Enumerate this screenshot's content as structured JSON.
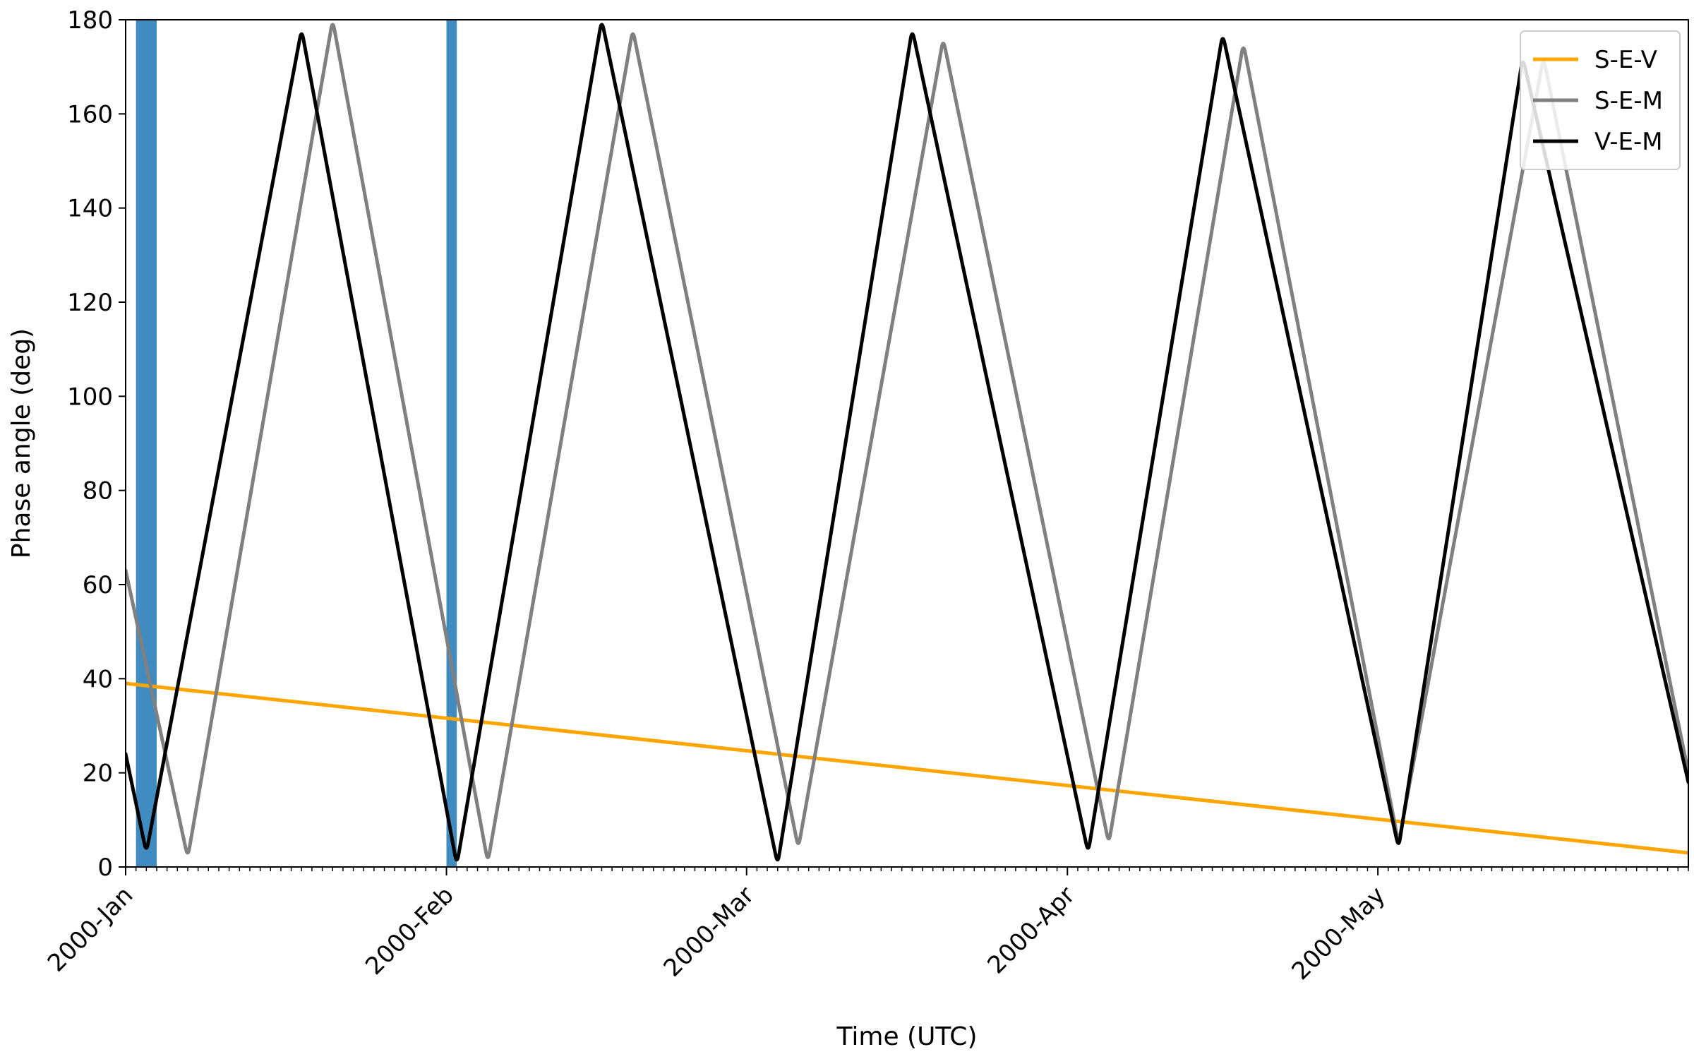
{
  "chart_data": {
    "type": "line",
    "title": "",
    "xlabel": "Time (UTC)",
    "ylabel": "Phase angle (deg)",
    "xlim": [
      "2000-01-01",
      "2000-05-31"
    ],
    "ylim": [
      0,
      180
    ],
    "y_ticks": [
      0,
      20,
      40,
      60,
      80,
      100,
      120,
      140,
      160,
      180
    ],
    "x_ticks": [
      {
        "date": "2000-01-01",
        "label": "2000-Jan"
      },
      {
        "date": "2000-02-01",
        "label": "2000-Feb"
      },
      {
        "date": "2000-03-01",
        "label": "2000-Mar"
      },
      {
        "date": "2000-04-01",
        "label": "2000-Apr"
      },
      {
        "date": "2000-05-01",
        "label": "2000-May"
      }
    ],
    "minor_ticks": "daily",
    "grid": false,
    "legend_position": "top-right",
    "shaded_intervals": [
      {
        "start": "2000-01-02",
        "end": "2000-01-04",
        "color": "#1f77b4"
      },
      {
        "start": "2000-02-01",
        "end": "2000-02-02",
        "color": "#1f77b4"
      }
    ],
    "series": [
      {
        "name": "S-E-V",
        "color": "#ffa500",
        "points": [
          [
            "2000-01-01",
            39.0
          ],
          [
            "2000-05-31",
            3.0
          ]
        ]
      },
      {
        "name": "S-E-M",
        "color": "#808080",
        "points": [
          [
            "2000-01-01",
            63.0
          ],
          [
            "2000-01-07",
            2.0
          ],
          [
            "2000-01-21",
            180.0
          ],
          [
            "2000-02-05",
            1.0
          ],
          [
            "2000-02-19",
            178.0
          ],
          [
            "2000-03-06",
            4.0
          ],
          [
            "2000-03-20",
            176.0
          ],
          [
            "2000-04-05",
            5.0
          ],
          [
            "2000-04-18",
            175.0
          ],
          [
            "2000-05-03",
            5.0
          ],
          [
            "2000-05-17",
            172.0
          ],
          [
            "2000-05-31",
            20.0
          ]
        ]
      },
      {
        "name": "V-E-M",
        "color": "#000000",
        "points": [
          [
            "2000-01-01",
            24.0
          ],
          [
            "2000-01-03",
            3.0
          ],
          [
            "2000-01-18",
            178.0
          ],
          [
            "2000-02-02",
            0.5
          ],
          [
            "2000-02-16",
            180.0
          ],
          [
            "2000-03-04",
            0.5
          ],
          [
            "2000-03-17",
            178.0
          ],
          [
            "2000-04-03",
            3.0
          ],
          [
            "2000-04-16",
            177.0
          ],
          [
            "2000-05-03",
            4.0
          ],
          [
            "2000-05-15",
            172.0
          ],
          [
            "2000-05-31",
            18.0
          ]
        ]
      }
    ]
  }
}
